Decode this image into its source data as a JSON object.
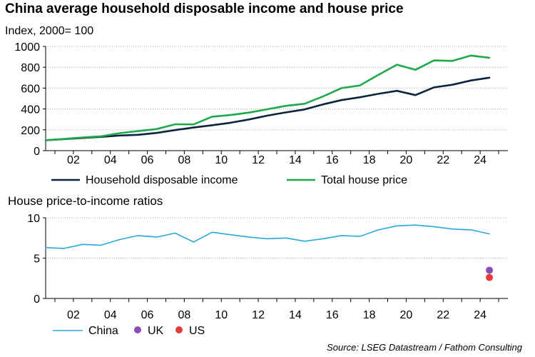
{
  "title": "China average household disposable income and house price",
  "subtitle": "Index, 2000= 100",
  "source": "Source: LSEG Datastream / Fathom Consulting",
  "colors": {
    "income": "#0d2440",
    "house": "#1eaa4a",
    "china": "#29a8d8",
    "uk": "#8a4fb5",
    "us": "#e83a3a"
  },
  "chart_data": [
    {
      "type": "line",
      "title": "",
      "ylim": [
        0,
        1000
      ],
      "yticks": [
        "0",
        "200",
        "400",
        "600",
        "800",
        "1000"
      ],
      "xlim": [
        2000.5,
        2025.5
      ],
      "xticks": [
        "02",
        "04",
        "06",
        "08",
        "10",
        "12",
        "14",
        "16",
        "18",
        "20",
        "22",
        "24"
      ],
      "legend_position": "bottom",
      "grid": true,
      "series": [
        {
          "name": "Household disposable income",
          "x": [
            2000.5,
            2001.5,
            2002.5,
            2003.5,
            2004.5,
            2005.5,
            2006.5,
            2007.5,
            2008.5,
            2009.5,
            2010.5,
            2011.5,
            2012.5,
            2013.5,
            2014.5,
            2015.5,
            2016.5,
            2017.5,
            2018.5,
            2019.5,
            2020.5,
            2021.5,
            2022.5,
            2023.5,
            2024.5
          ],
          "values": [
            100,
            111,
            122,
            132,
            145,
            152,
            170,
            197,
            222,
            244,
            268,
            299,
            336,
            367,
            395,
            444,
            485,
            512,
            545,
            574,
            533,
            607,
            632,
            673,
            700
          ]
        },
        {
          "name": "Total house price",
          "x": [
            2000.5,
            2001.5,
            2002.5,
            2003.5,
            2004.5,
            2005.5,
            2006.5,
            2007.5,
            2008.5,
            2009.5,
            2010.5,
            2011.5,
            2012.5,
            2013.5,
            2014.5,
            2015.5,
            2016.5,
            2017.5,
            2018.5,
            2019.5,
            2020.5,
            2021.5,
            2022.5,
            2023.5,
            2024.5
          ],
          "values": [
            100,
            112,
            127,
            138,
            168,
            188,
            207,
            253,
            252,
            326,
            342,
            365,
            397,
            430,
            450,
            520,
            600,
            626,
            728,
            825,
            775,
            866,
            861,
            912,
            891
          ]
        }
      ]
    },
    {
      "type": "line",
      "title": "House price-to-income ratios",
      "ylim": [
        0,
        10
      ],
      "yticks": [
        "0",
        "5",
        "10"
      ],
      "xlim": [
        2000.5,
        2025.5
      ],
      "xticks": [
        "02",
        "04",
        "06",
        "08",
        "10",
        "12",
        "14",
        "16",
        "18",
        "20",
        "22",
        "24"
      ],
      "legend_position": "bottom",
      "grid": true,
      "series": [
        {
          "name": "China",
          "x": [
            2000.5,
            2001.5,
            2002.5,
            2003.5,
            2004.5,
            2005.5,
            2006.5,
            2007.5,
            2008.5,
            2009.5,
            2010.5,
            2011.5,
            2012.5,
            2013.5,
            2014.5,
            2015.5,
            2016.5,
            2017.5,
            2018.5,
            2019.5,
            2020.5,
            2021.5,
            2022.5,
            2023.5,
            2024.5
          ],
          "values": [
            6.3,
            6.2,
            6.7,
            6.6,
            7.3,
            7.8,
            7.6,
            8.1,
            7.0,
            8.2,
            7.9,
            7.6,
            7.4,
            7.5,
            7.1,
            7.4,
            7.8,
            7.7,
            8.5,
            9.0,
            9.1,
            8.9,
            8.6,
            8.5,
            8.0
          ]
        },
        {
          "name": "UK",
          "type": "scatter",
          "x": [
            2024.5
          ],
          "values": [
            3.5
          ]
        },
        {
          "name": "US",
          "type": "scatter",
          "x": [
            2024.5
          ],
          "values": [
            2.6
          ]
        }
      ]
    }
  ]
}
